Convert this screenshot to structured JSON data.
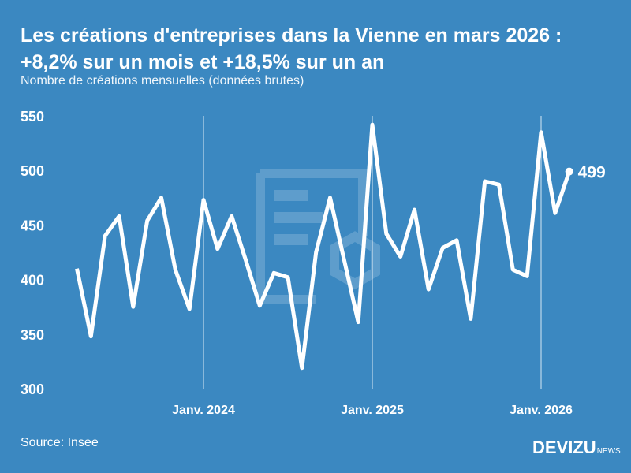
{
  "title_line1": "Les créations d'entreprises dans la Vienne en mars 2026 :",
  "title_line2": "+8,2% sur un mois et +18,5% sur un an",
  "subtitle": "Nombre de créations mensuelles (données brutes)",
  "source": "Source: Insee",
  "logo": {
    "main": "DEVIZU",
    "suffix": "NEWS"
  },
  "colors": {
    "background": "#3b88c1",
    "line": "#ffffff"
  },
  "chart_data": {
    "type": "line",
    "title": "Les créations d'entreprises dans la Vienne en mars 2026 : +8,2% sur un mois et +18,5% sur un an",
    "ylabel": "Nombre de créations mensuelles (données brutes)",
    "ylim": [
      300,
      550
    ],
    "yticks": [
      "300",
      "350",
      "400",
      "450",
      "500",
      "550"
    ],
    "xticks": [
      {
        "label": "Janv. 2024",
        "month": "2024-01"
      },
      {
        "label": "Janv. 2025",
        "month": "2025-01"
      },
      {
        "label": "Janv. 2026",
        "month": "2026-01"
      }
    ],
    "x": [
      "2023-04",
      "2023-05",
      "2023-06",
      "2023-07",
      "2023-08",
      "2023-09",
      "2023-10",
      "2023-11",
      "2023-12",
      "2024-01",
      "2024-02",
      "2024-03",
      "2024-04",
      "2024-05",
      "2024-06",
      "2024-07",
      "2024-08",
      "2024-09",
      "2024-10",
      "2024-11",
      "2024-12",
      "2025-01",
      "2025-02",
      "2025-03",
      "2025-04",
      "2025-05",
      "2025-06",
      "2025-07",
      "2025-08",
      "2025-09",
      "2025-10",
      "2025-11",
      "2025-12",
      "2026-01",
      "2026-02",
      "2026-03"
    ],
    "values": [
      410,
      348,
      440,
      458,
      375,
      454,
      475,
      409,
      373,
      473,
      428,
      458,
      418,
      376,
      406,
      402,
      319,
      425,
      475,
      418,
      361,
      542,
      442,
      421,
      464,
      391,
      429,
      436,
      364,
      490,
      487,
      409,
      403,
      535,
      461,
      499
    ],
    "last_label": "499"
  }
}
